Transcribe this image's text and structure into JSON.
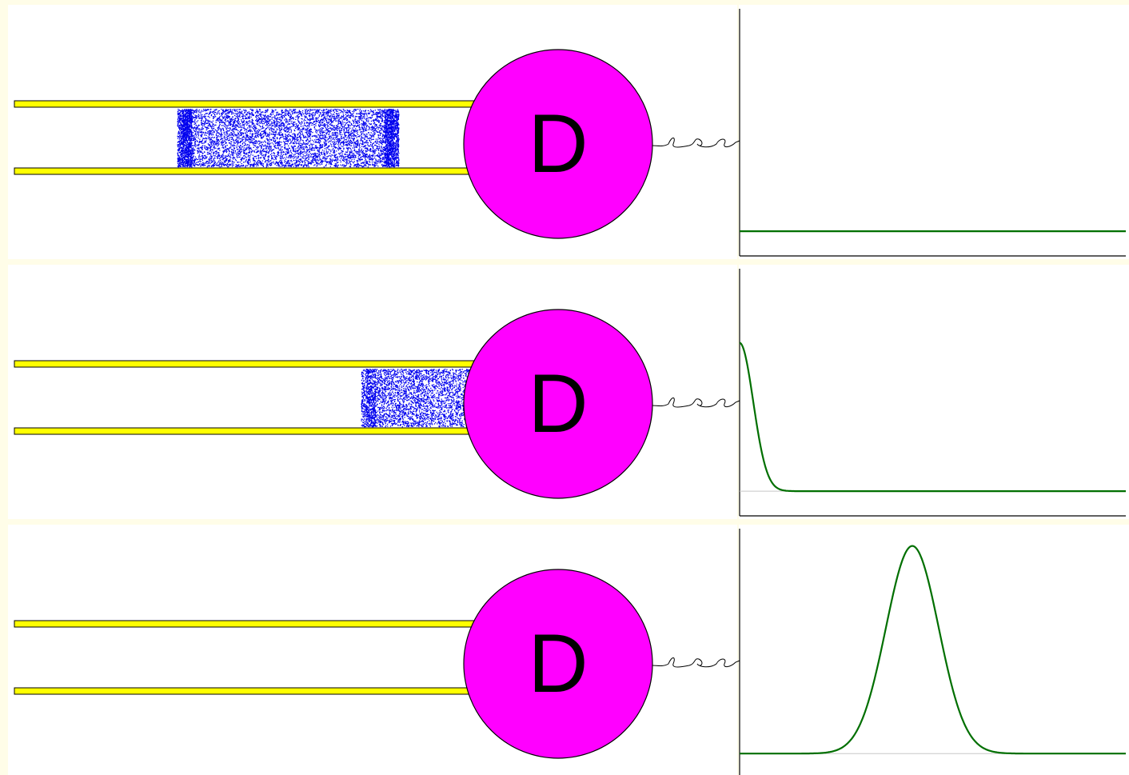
{
  "colors": {
    "page_background": "#fffde8",
    "panel_background": "#ffffff",
    "column_wall": "#ffff00",
    "sample_particles": "#0000ee",
    "detector": "#ff00ff",
    "signal_trace": "#006f00",
    "baseline_guide": "#c8c8c8",
    "axis": "#000000"
  },
  "detector": {
    "label": "D",
    "icon": "detector-circle"
  },
  "stages": [
    {
      "id": "before-detector",
      "sample_band": {
        "start": 0.36,
        "end": 0.815,
        "intensity": 1.0
      },
      "detector_signal": {
        "shape": "flat",
        "peak_fraction": 0.0,
        "baseline_fraction": 0.1
      }
    },
    {
      "id": "entering-detector",
      "sample_band": {
        "start": 0.755,
        "end": 1.0,
        "intensity": 1.0
      },
      "detector_signal": {
        "shape": "rising-edge",
        "peak_fraction": 0.7,
        "baseline_fraction": 0.1
      }
    },
    {
      "id": "after-detector",
      "sample_band": null,
      "detector_signal": {
        "shape": "gaussian-peak",
        "peak_fraction": 0.93,
        "baseline_fraction": 0.09
      }
    }
  ]
}
